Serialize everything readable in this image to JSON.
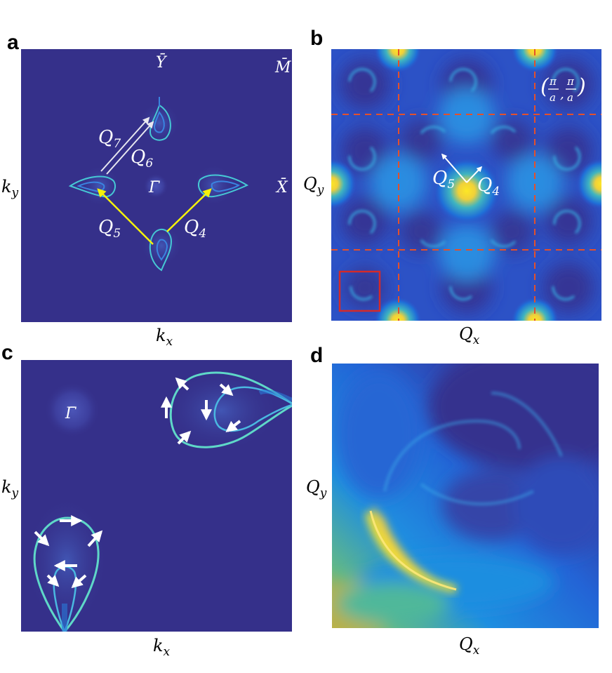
{
  "panels": {
    "a": {
      "letter": "a",
      "xlabel": "k",
      "xlabel_sub": "x",
      "ylabel": "k",
      "ylabel_sub": "y",
      "points": {
        "y": "Ȳ",
        "m": "M̄",
        "x": "X̄",
        "gamma": "Γ̄"
      },
      "vectors": [
        {
          "name": "Q",
          "sub": "7"
        },
        {
          "name": "Q",
          "sub": "6"
        },
        {
          "name": "Q",
          "sub": "5"
        },
        {
          "name": "Q",
          "sub": "4"
        }
      ],
      "colors": {
        "background": "#35308a",
        "arrow_yellow": "#f5f20a",
        "arrow_white": "#e8e8f0"
      }
    },
    "b": {
      "letter": "b",
      "xlabel": "Q",
      "xlabel_sub": "x",
      "ylabel": "Q",
      "ylabel_sub": "y",
      "corner_label": "(π/a, π/a)",
      "corner_num": "π",
      "corner_den": "a",
      "vectors": [
        {
          "name": "Q",
          "sub": "5"
        },
        {
          "name": "Q",
          "sub": "4"
        }
      ],
      "colors": {
        "grid_dash": "#e5502a",
        "box": "#d42a2a"
      }
    },
    "c": {
      "letter": "c",
      "xlabel": "k",
      "xlabel_sub": "x",
      "ylabel": "k",
      "ylabel_sub": "y",
      "points": {
        "gamma": "Γ̄"
      }
    },
    "d": {
      "letter": "d",
      "xlabel": "Q",
      "xlabel_sub": "x",
      "ylabel": "Q",
      "ylabel_sub": "y"
    }
  }
}
